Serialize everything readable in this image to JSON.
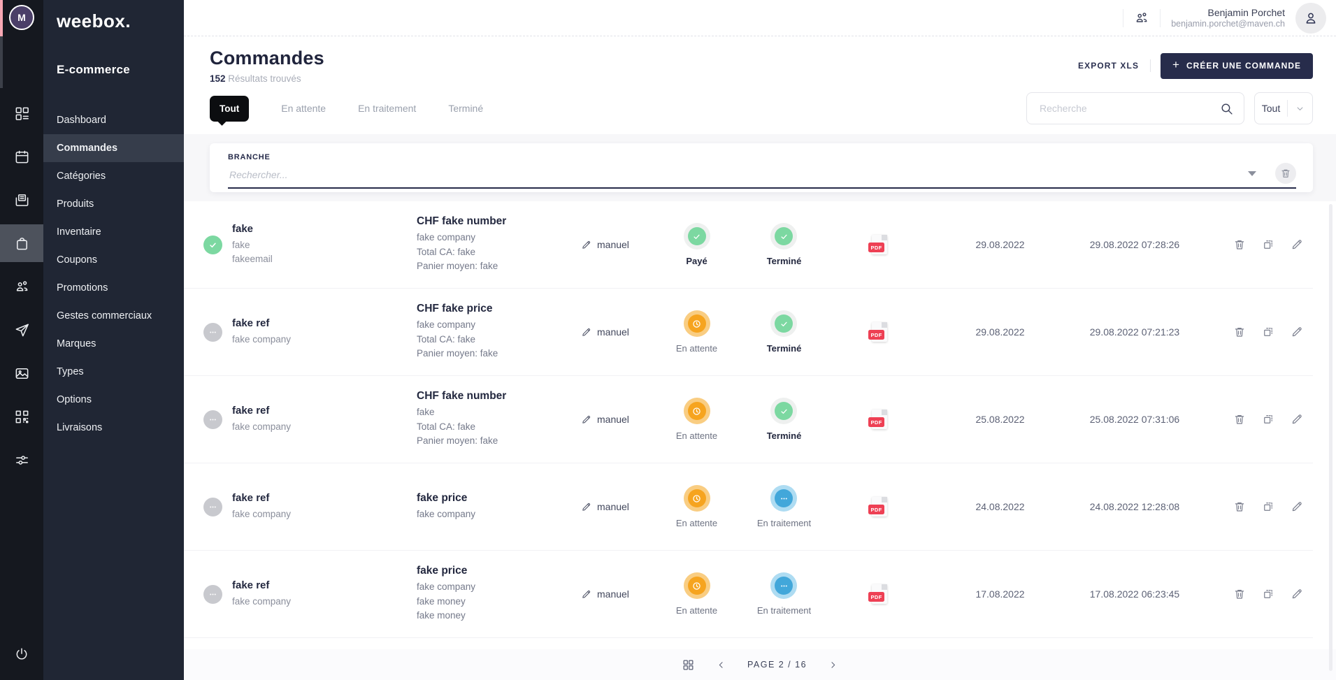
{
  "app": {
    "logo": "weebox.",
    "module_title": "E-commerce",
    "workspace_initial": "M"
  },
  "rail": {
    "icons": [
      {
        "name": "dashboard-grid",
        "active": false
      },
      {
        "name": "calendar",
        "active": false
      },
      {
        "name": "archive",
        "active": false
      },
      {
        "name": "shopping-bag",
        "active": true
      },
      {
        "name": "team",
        "active": false
      },
      {
        "name": "send",
        "active": false
      },
      {
        "name": "media",
        "active": false
      },
      {
        "name": "qr-code",
        "active": false
      },
      {
        "name": "settings-sliders",
        "active": false
      }
    ]
  },
  "sidebar": {
    "items": [
      {
        "label": "Dashboard",
        "active": false
      },
      {
        "label": "Commandes",
        "active": true
      },
      {
        "label": "Catégories",
        "active": false
      },
      {
        "label": "Produits",
        "active": false
      },
      {
        "label": "Inventaire",
        "active": false
      },
      {
        "label": "Coupons",
        "active": false
      },
      {
        "label": "Promotions",
        "active": false
      },
      {
        "label": "Gestes commerciaux",
        "active": false
      },
      {
        "label": "Marques",
        "active": false
      },
      {
        "label": "Types",
        "active": false
      },
      {
        "label": "Options",
        "active": false
      },
      {
        "label": "Livraisons",
        "active": false
      }
    ]
  },
  "topbar": {
    "user_name": "Benjamin Porchet",
    "user_email": "benjamin.porchet@maven.ch"
  },
  "page": {
    "title": "Commandes",
    "results_count": "152",
    "results_label": "Résultats trouvés",
    "export_label": "EXPORT XLS",
    "create_plus": "+",
    "create_label": "CRÉER UNE COMMANDE"
  },
  "tabs": [
    {
      "label": "Tout",
      "active": true
    },
    {
      "label": "En attente",
      "active": false
    },
    {
      "label": "En traitement",
      "active": false
    },
    {
      "label": "Terminé",
      "active": false
    }
  ],
  "search": {
    "placeholder": "Recherche",
    "scope_value": "Tout"
  },
  "branch_filter": {
    "label": "BRANCHE",
    "placeholder": "Rechercher..."
  },
  "table": {
    "source_label": "manuel",
    "pdf_label": "PDF"
  },
  "orders": [
    {
      "indicator": "success",
      "customer": {
        "name": "fake",
        "lines": [
          "fake",
          "fakeemail"
        ]
      },
      "order": {
        "title": "CHF fake number",
        "lines": [
          "fake company",
          "Total CA: fake",
          "Panier moyen: fake"
        ]
      },
      "payment": {
        "label": "Payé",
        "state": "success"
      },
      "status": {
        "label": "Terminé",
        "state": "success"
      },
      "date": "29.08.2022",
      "updated": "29.08.2022 07:28:26"
    },
    {
      "indicator": "neutral",
      "customer": {
        "name": "fake ref",
        "lines": [
          "fake company"
        ]
      },
      "order": {
        "title": "CHF fake price",
        "lines": [
          "fake company",
          "Total CA: fake",
          "Panier moyen: fake"
        ]
      },
      "payment": {
        "label": "En attente",
        "state": "pending"
      },
      "status": {
        "label": "Terminé",
        "state": "success"
      },
      "date": "29.08.2022",
      "updated": "29.08.2022 07:21:23"
    },
    {
      "indicator": "neutral",
      "customer": {
        "name": "fake ref",
        "lines": [
          "fake company"
        ]
      },
      "order": {
        "title": "CHF fake number",
        "lines": [
          "fake",
          "Total CA: fake",
          "Panier moyen: fake"
        ]
      },
      "payment": {
        "label": "En attente",
        "state": "pending"
      },
      "status": {
        "label": "Terminé",
        "state": "success"
      },
      "date": "25.08.2022",
      "updated": "25.08.2022 07:31:06"
    },
    {
      "indicator": "neutral",
      "customer": {
        "name": "fake ref",
        "lines": [
          "fake company"
        ]
      },
      "order": {
        "title": "fake price",
        "lines": [
          "fake company"
        ]
      },
      "payment": {
        "label": "En attente",
        "state": "pending"
      },
      "status": {
        "label": "En traitement",
        "state": "processing"
      },
      "date": "24.08.2022",
      "updated": "24.08.2022 12:28:08"
    },
    {
      "indicator": "neutral",
      "customer": {
        "name": "fake ref",
        "lines": [
          "fake company"
        ]
      },
      "order": {
        "title": "fake price",
        "lines": [
          "fake company",
          "fake money",
          "fake money"
        ]
      },
      "payment": {
        "label": "En attente",
        "state": "pending"
      },
      "status": {
        "label": "En traitement",
        "state": "processing"
      },
      "date": "17.08.2022",
      "updated": "17.08.2022 06:23:45"
    }
  ],
  "pagination": {
    "label": "PAGE 2 / 16"
  },
  "colors": {
    "rail_bg": "#15181f",
    "sidebar_bg": "#202634",
    "accent_dark": "#272c4b",
    "success": "#7cd8a1",
    "pending": "#f6a41f",
    "processing": "#42a7da",
    "pdf_red": "#ee4054",
    "active_tab": "#0c0d10"
  }
}
